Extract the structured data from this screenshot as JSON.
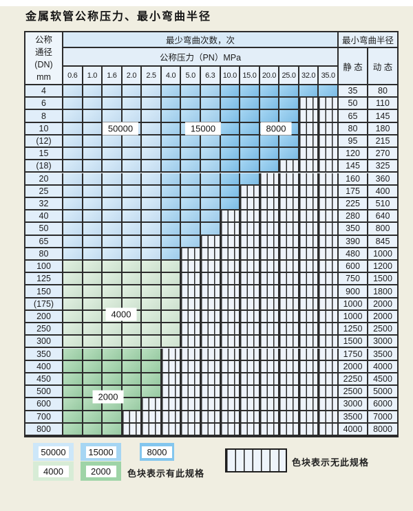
{
  "title": "金属软管公称压力、最小弯曲半径",
  "table": {
    "header": {
      "dn_label_lines": [
        "公称",
        "通径",
        "(DN)",
        "mm"
      ],
      "bend_count_label": "最少弯曲次数，次",
      "pressure_label": "公称压力（PN）MPa",
      "radius_label": "最小弯曲半径",
      "static_label": "静 态",
      "dynamic_label": "动 态",
      "pressure_columns": [
        "0.6",
        "1.0",
        "1.6",
        "2.0",
        "2.5",
        "4.0",
        "5.0",
        "6.3",
        "10.0",
        "15.0",
        "20.0",
        "25.0",
        "32.0",
        "35.0"
      ]
    },
    "zones": {
      "blue": [
        {
          "bend_count": "50000",
          "pn_from": "0.6",
          "pn_to": "2.5",
          "color": "#cde7f9"
        },
        {
          "bend_count": "15000",
          "pn_from": "4.0",
          "pn_to": "6.3",
          "color": "#a6d6f3"
        },
        {
          "bend_count": "8000",
          "pn_from": "10.0",
          "pn_to": "35.0",
          "color": "#83c6ee"
        }
      ],
      "green": [
        {
          "bend_count": "4000",
          "dn_from": "100",
          "dn_to": "300",
          "color": "#d7ecd6"
        },
        {
          "bend_count": "2000",
          "dn_from": "350",
          "dn_to": "800",
          "color": "#9fd4a7"
        }
      ]
    },
    "rows": [
      {
        "dn": "4",
        "max_pn": "35.0",
        "group": "blue",
        "static": "35",
        "dynamic": "80"
      },
      {
        "dn": "6",
        "max_pn": "25.0",
        "group": "blue",
        "static": "50",
        "dynamic": "110"
      },
      {
        "dn": "8",
        "max_pn": "25.0",
        "group": "blue",
        "static": "65",
        "dynamic": "145"
      },
      {
        "dn": "10",
        "max_pn": "25.0",
        "group": "blue",
        "static": "80",
        "dynamic": "180"
      },
      {
        "dn": "(12)",
        "max_pn": "25.0",
        "group": "blue",
        "static": "95",
        "dynamic": "215"
      },
      {
        "dn": "15",
        "max_pn": "25.0",
        "group": "blue",
        "static": "120",
        "dynamic": "270"
      },
      {
        "dn": "(18)",
        "max_pn": "20.0",
        "group": "blue",
        "static": "145",
        "dynamic": "325"
      },
      {
        "dn": "20",
        "max_pn": "15.0",
        "group": "blue",
        "static": "160",
        "dynamic": "360"
      },
      {
        "dn": "25",
        "max_pn": "10.0",
        "group": "blue",
        "static": "175",
        "dynamic": "400"
      },
      {
        "dn": "32",
        "max_pn": "10.0",
        "group": "blue",
        "static": "225",
        "dynamic": "510"
      },
      {
        "dn": "40",
        "max_pn": "6.3",
        "group": "blue",
        "static": "280",
        "dynamic": "640"
      },
      {
        "dn": "50",
        "max_pn": "6.3",
        "group": "blue",
        "static": "350",
        "dynamic": "800"
      },
      {
        "dn": "65",
        "max_pn": "5.0",
        "group": "blue",
        "static": "390",
        "dynamic": "845"
      },
      {
        "dn": "80",
        "max_pn": "4.0",
        "group": "blue",
        "static": "480",
        "dynamic": "1000"
      },
      {
        "dn": "100",
        "max_pn": "4.0",
        "group": "green",
        "bend_count": "4000",
        "static": "600",
        "dynamic": "1200"
      },
      {
        "dn": "125",
        "max_pn": "4.0",
        "group": "green",
        "bend_count": "4000",
        "static": "750",
        "dynamic": "1500"
      },
      {
        "dn": "150",
        "max_pn": "4.0",
        "group": "green",
        "bend_count": "4000",
        "static": "900",
        "dynamic": "1800"
      },
      {
        "dn": "(175)",
        "max_pn": "4.0",
        "group": "green",
        "bend_count": "4000",
        "static": "1000",
        "dynamic": "2000"
      },
      {
        "dn": "200",
        "max_pn": "4.0",
        "group": "green",
        "bend_count": "4000",
        "static": "1000",
        "dynamic": "2000"
      },
      {
        "dn": "250",
        "max_pn": "4.0",
        "group": "green",
        "bend_count": "4000",
        "static": "1250",
        "dynamic": "2500"
      },
      {
        "dn": "300",
        "max_pn": "4.0",
        "group": "green",
        "bend_count": "4000",
        "static": "1500",
        "dynamic": "3000"
      },
      {
        "dn": "350",
        "max_pn": "2.5",
        "group": "green",
        "bend_count": "2000",
        "static": "1750",
        "dynamic": "3500"
      },
      {
        "dn": "400",
        "max_pn": "2.5",
        "group": "green",
        "bend_count": "2000",
        "static": "2000",
        "dynamic": "4000"
      },
      {
        "dn": "450",
        "max_pn": "2.5",
        "group": "green",
        "bend_count": "2000",
        "static": "2250",
        "dynamic": "4500"
      },
      {
        "dn": "500",
        "max_pn": "2.5",
        "group": "green",
        "bend_count": "2000",
        "static": "2500",
        "dynamic": "5000"
      },
      {
        "dn": "600",
        "max_pn": "2.0",
        "group": "green",
        "bend_count": "2000",
        "static": "3000",
        "dynamic": "6000"
      },
      {
        "dn": "700",
        "max_pn": "1.6",
        "group": "green",
        "bend_count": "2000",
        "static": "3500",
        "dynamic": "7000"
      },
      {
        "dn": "800",
        "max_pn": "1.6",
        "group": "green",
        "bend_count": "2000",
        "static": "4000",
        "dynamic": "8000"
      }
    ]
  },
  "legend": {
    "available_note": "色块表示有此规格",
    "unavailable_note": "色块表示无此规格"
  }
}
